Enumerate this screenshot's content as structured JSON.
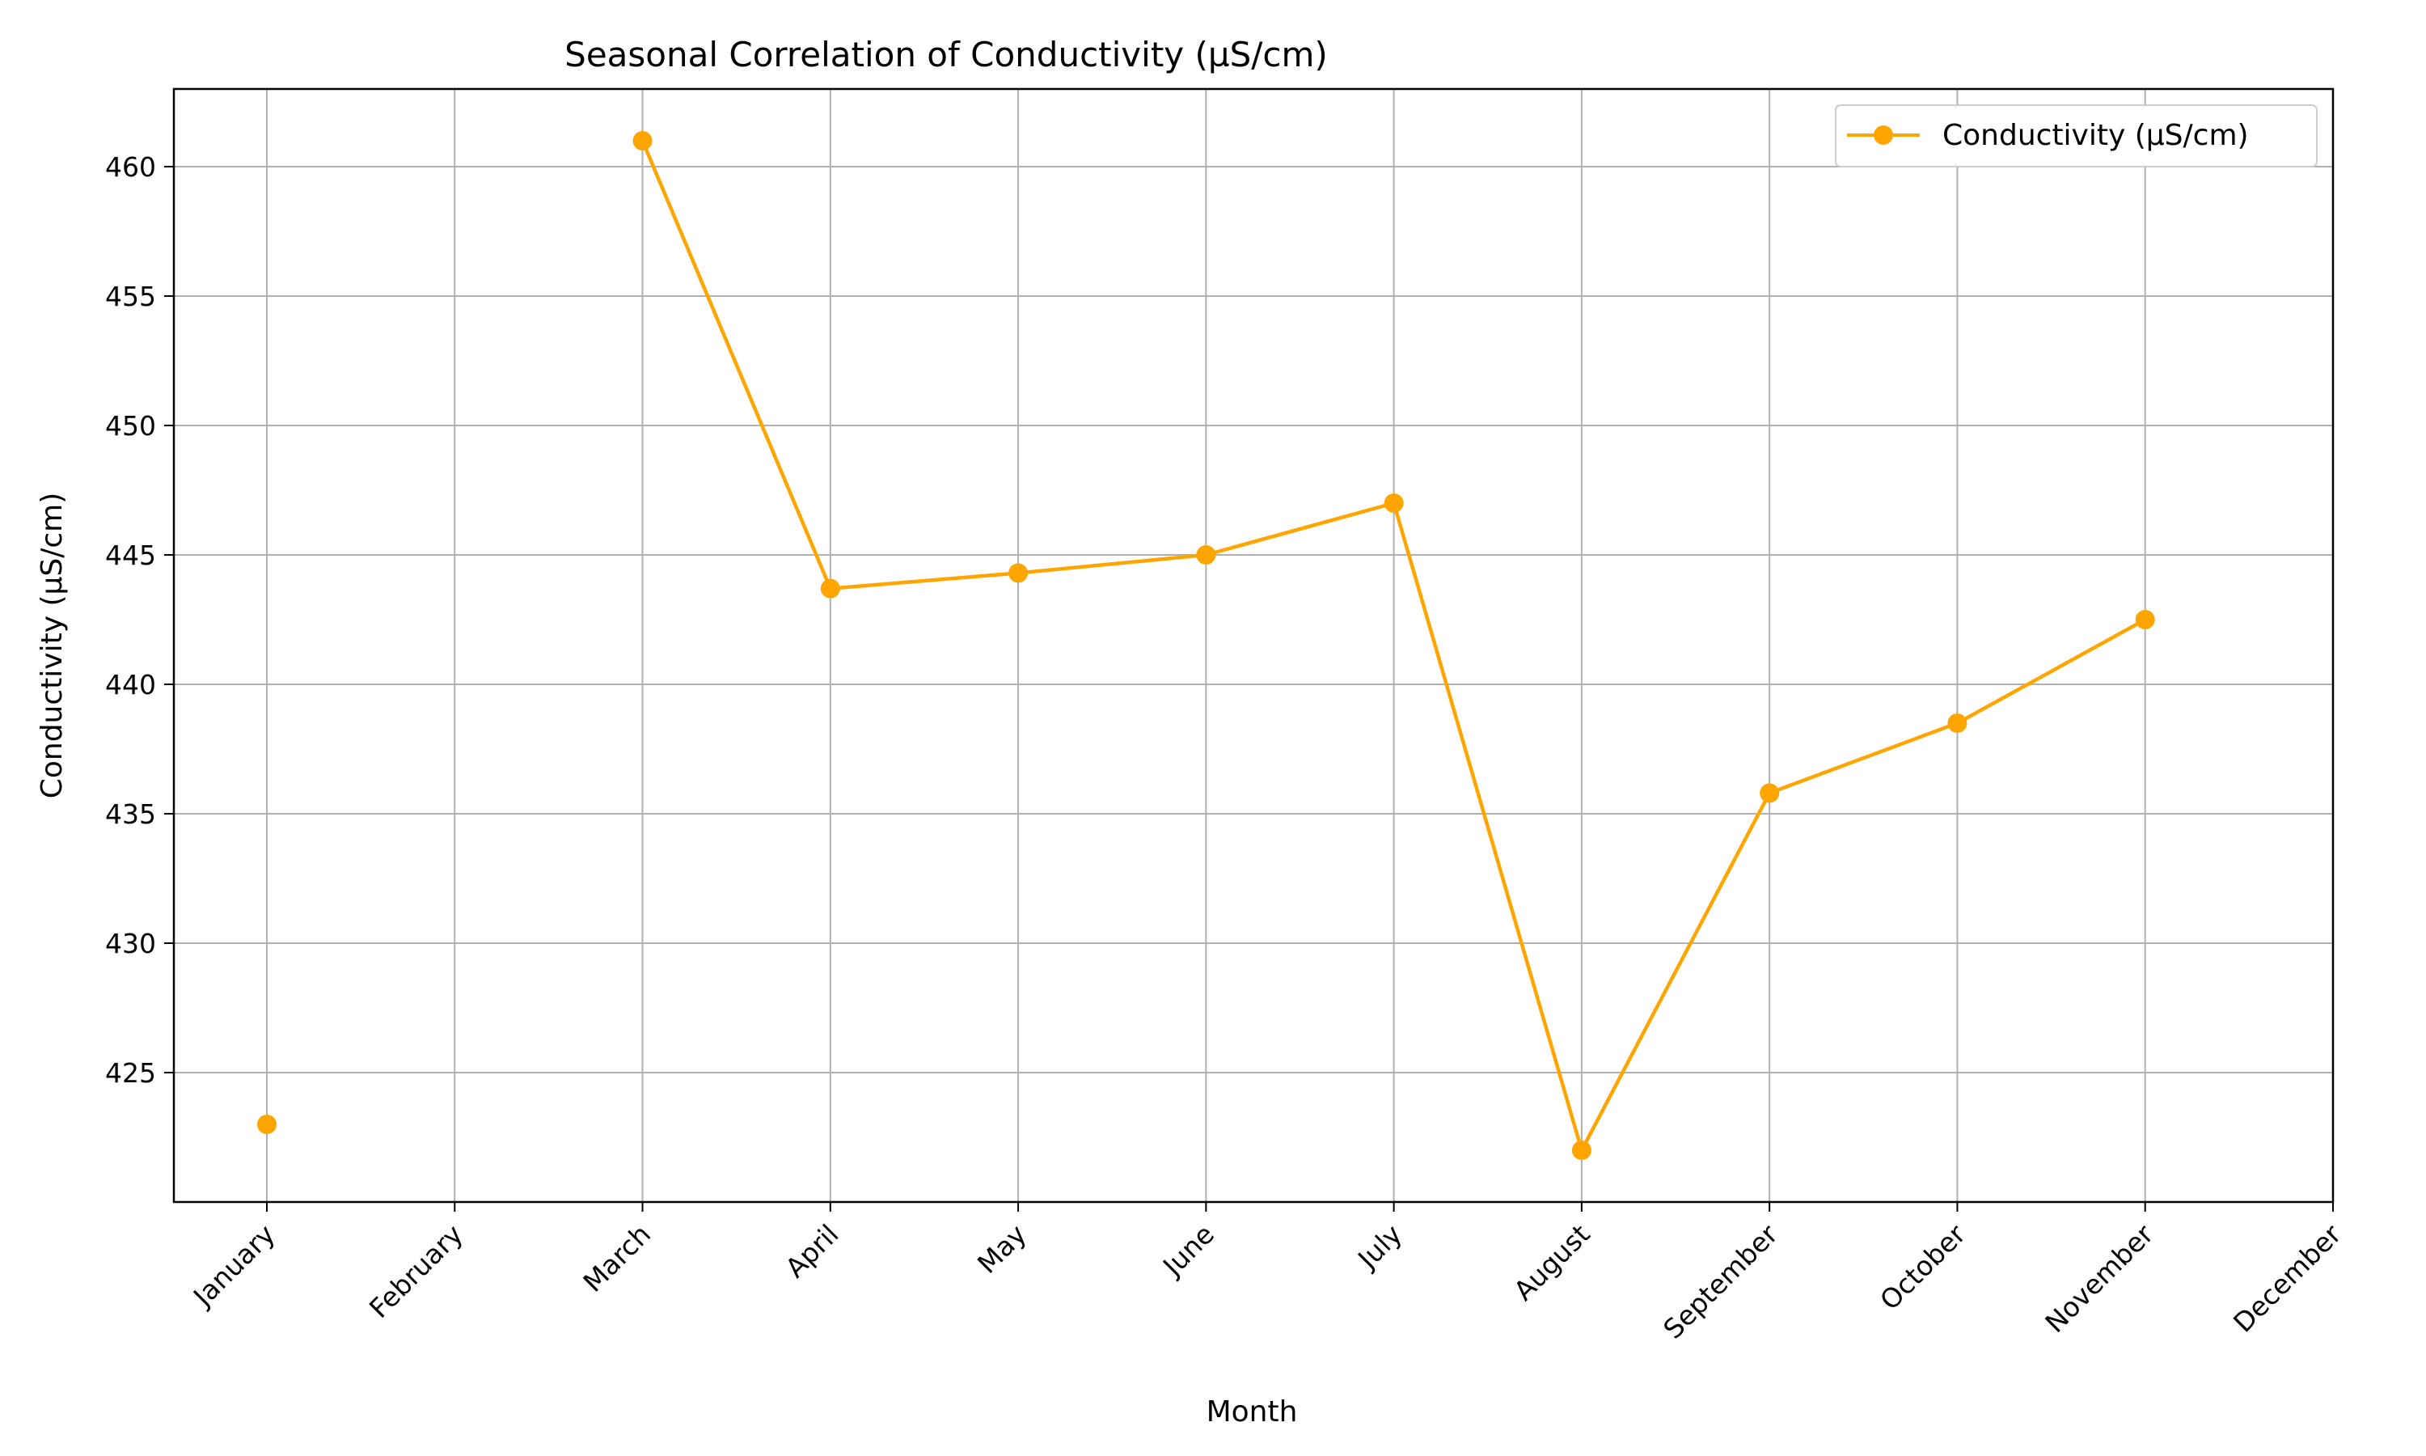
{
  "chart_data": {
    "type": "line",
    "title": "Seasonal Correlation of Conductivity (µS/cm)",
    "xlabel": "Month",
    "ylabel": "Conductivity (µS/cm)",
    "categories": [
      "January",
      "February",
      "March",
      "April",
      "May",
      "June",
      "July",
      "August",
      "September",
      "October",
      "November",
      "December"
    ],
    "series": [
      {
        "name": "Conductivity (µS/cm)",
        "color": "#FFA500",
        "marker": "circle",
        "values": [
          423.0,
          null,
          461.0,
          443.7,
          444.3,
          445.0,
          447.0,
          422.0,
          435.8,
          438.5,
          442.5,
          null
        ]
      }
    ],
    "yticks": [
      425,
      430,
      435,
      440,
      445,
      450,
      455,
      460
    ],
    "ylim": [
      420.0,
      463.0
    ],
    "grid": true,
    "legend_position": "top-right"
  }
}
